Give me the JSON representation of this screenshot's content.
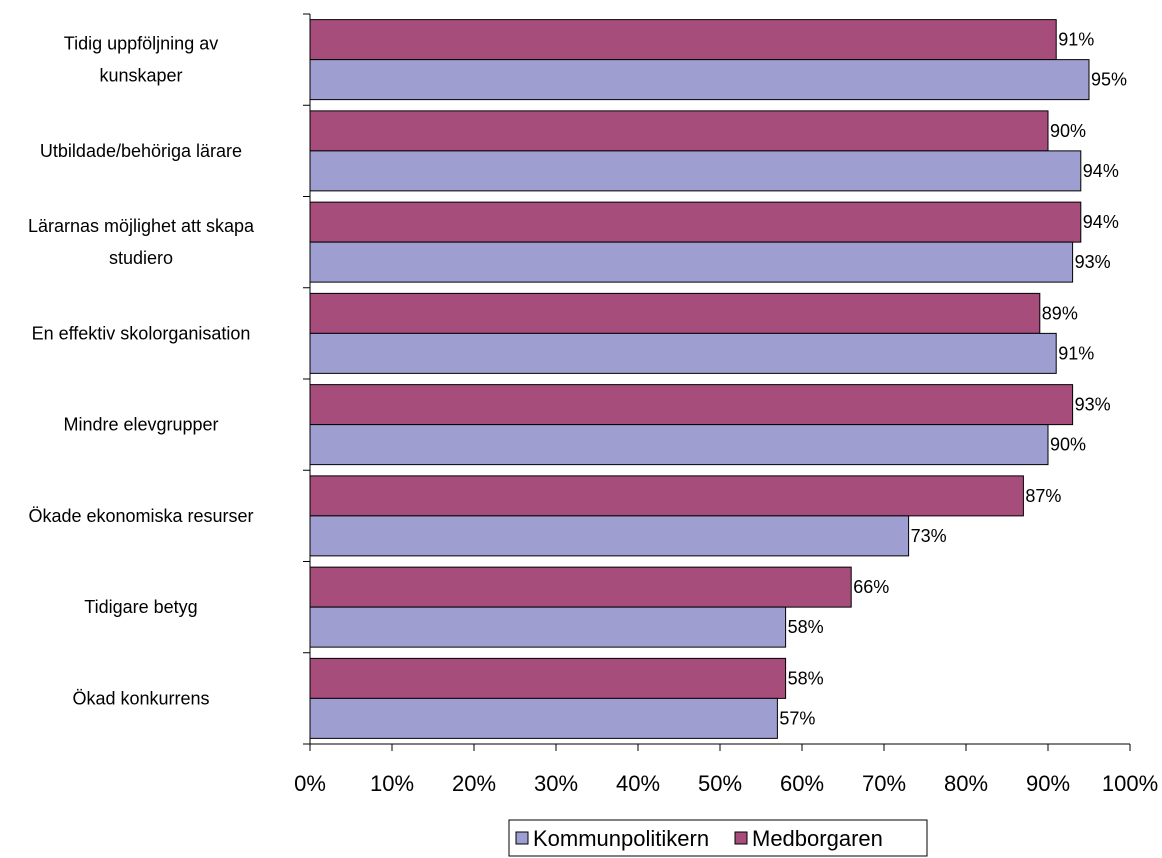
{
  "chart_data": {
    "type": "bar",
    "orientation": "horizontal",
    "categories": [
      [
        "Tidig uppföljning av",
        "kunskaper"
      ],
      [
        "Utbildade/behöriga lärare"
      ],
      [
        "Lärarnas möjlighet att skapa",
        "studiero"
      ],
      [
        "En effektiv skolorganisation"
      ],
      [
        "Mindre elevgrupper"
      ],
      [
        "Ökade ekonomiska resurser"
      ],
      [
        "Tidigare betyg"
      ],
      [
        "Ökad konkurrens"
      ]
    ],
    "series": [
      {
        "name": "Medborgaren",
        "color": "#A64D7C",
        "values": [
          91,
          90,
          94,
          89,
          93,
          87,
          66,
          58
        ],
        "labels": [
          "91%",
          "90%",
          "94%",
          "89%",
          "93%",
          "87%",
          "66%",
          "58%"
        ]
      },
      {
        "name": "Kommunpolitikern",
        "color": "#9E9ED0",
        "values": [
          95,
          94,
          93,
          91,
          90,
          73,
          58,
          57
        ],
        "labels": [
          "95%",
          "94%",
          "93%",
          "91%",
          "90%",
          "73%",
          "58%",
          "57%"
        ]
      }
    ],
    "xlim": [
      0,
      100
    ],
    "x_ticks": [
      "0%",
      "10%",
      "20%",
      "30%",
      "40%",
      "50%",
      "60%",
      "70%",
      "80%",
      "90%",
      "100%"
    ],
    "legend": {
      "position": "bottom",
      "items": [
        {
          "label": "Kommunpolitikern",
          "color": "#9E9ED0"
        },
        {
          "label": "Medborgaren",
          "color": "#A64D7C"
        }
      ]
    },
    "gridlines": false
  }
}
